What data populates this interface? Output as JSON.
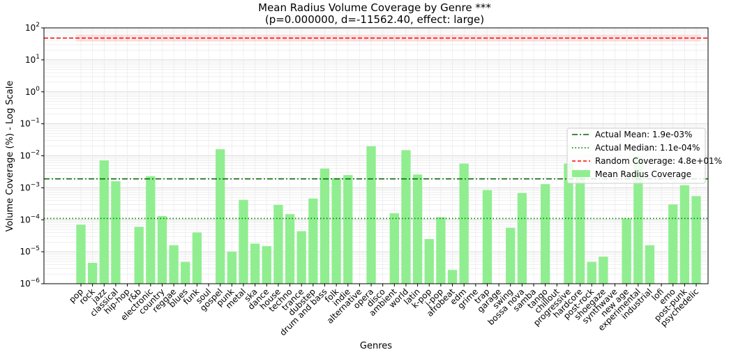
{
  "chart_data": {
    "type": "bar",
    "title": "Mean Radius Volume Coverage by Genre ***",
    "subtitle": "(p=0.000000, d=-11562.40, effect: large)",
    "xlabel": "Genres",
    "ylabel": "Volume Coverage (%) - Log Scale",
    "yscale": "log",
    "ylim": [
      1e-06,
      100
    ],
    "yticks": [
      {
        "value": 1e-06,
        "base": "10",
        "exp": "−6"
      },
      {
        "value": 1e-05,
        "base": "10",
        "exp": "−5"
      },
      {
        "value": 0.0001,
        "base": "10",
        "exp": "−4"
      },
      {
        "value": 0.001,
        "base": "10",
        "exp": "−3"
      },
      {
        "value": 0.01,
        "base": "10",
        "exp": "−2"
      },
      {
        "value": 0.1,
        "base": "10",
        "exp": "−1"
      },
      {
        "value": 1,
        "base": "10",
        "exp": "0"
      },
      {
        "value": 10,
        "base": "10",
        "exp": "1"
      },
      {
        "value": 100,
        "base": "10",
        "exp": "2"
      }
    ],
    "grid": true,
    "legend_position": "right",
    "bar_color": "#90ee90",
    "categories": [
      "pop",
      "rock",
      "jazz",
      "classical",
      "hip-hop",
      "r&b",
      "electronic",
      "country",
      "reggae",
      "blues",
      "funk",
      "soul",
      "gospel",
      "punk",
      "metal",
      "ska",
      "dance",
      "house",
      "techno",
      "trance",
      "dubstep",
      "drum and bass",
      "folk",
      "indie",
      "alternative",
      "opera",
      "disco",
      "ambient",
      "world",
      "latin",
      "k-pop",
      "j-pop",
      "afrobeat",
      "edm",
      "grime",
      "trap",
      "garage",
      "swing",
      "bossa nova",
      "samba",
      "tango",
      "chillout",
      "progressive",
      "hardcore",
      "post-rock",
      "shoegaze",
      "synthwave",
      "new age",
      "experimental",
      "industrial",
      "lofi",
      "emo",
      "post-punk",
      "psychedelic"
    ],
    "values": [
      7e-05,
      4.5e-06,
      0.0072,
      0.0016,
      null,
      6e-05,
      0.0023,
      0.00013,
      1.6e-05,
      4.8e-06,
      4e-05,
      null,
      0.016,
      1e-05,
      0.00042,
      1.8e-05,
      1.5e-05,
      0.00029,
      0.00015,
      4.4e-05,
      0.00046,
      0.004,
      0.002,
      0.0025,
      null,
      0.02,
      null,
      0.00016,
      0.015,
      0.0026,
      2.5e-05,
      0.00012,
      2.7e-06,
      0.0057,
      null,
      0.00085,
      null,
      5.6e-05,
      0.00068,
      null,
      0.0013,
      null,
      0.0057,
      0.0024,
      4.8e-06,
      7e-06,
      null,
      0.00011,
      0.0095,
      1.6e-05,
      null,
      0.0003,
      0.0012,
      0.00055
    ],
    "hlines": [
      {
        "name": "Actual Mean: 1.9e-03%",
        "value": 0.0019,
        "color": "#006400",
        "style": "dashdot"
      },
      {
        "name": "Actual Median: 1.1e-04%",
        "value": 0.00011,
        "color": "#008000",
        "style": "dotted"
      },
      {
        "name": "Random Coverage: 4.8e+01%",
        "value": 48,
        "color": "#ff0000",
        "style": "dashed"
      }
    ],
    "bar_series_name": "Mean Radius Coverage"
  }
}
